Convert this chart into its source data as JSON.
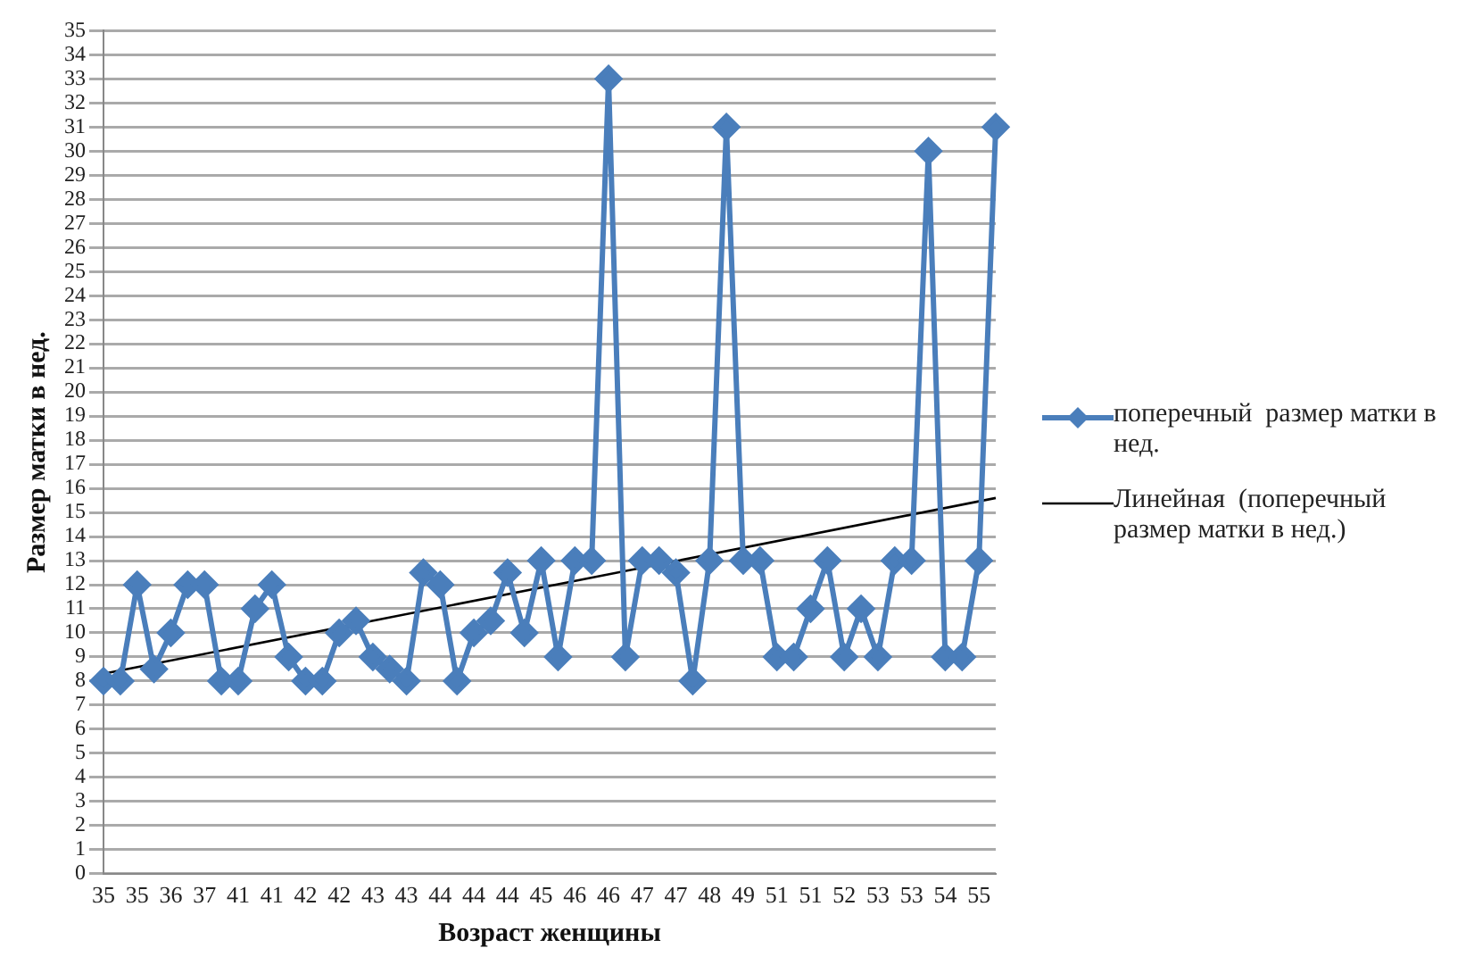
{
  "chart_data": {
    "type": "line",
    "xlabel": "Возраст женщины",
    "ylabel": "Размер матки в нед.",
    "categories": [
      "35",
      null,
      "35",
      null,
      "36",
      null,
      "37",
      null,
      "41",
      null,
      "41",
      null,
      "42",
      null,
      "42",
      null,
      "43",
      null,
      "43",
      null,
      "44",
      null,
      "44",
      null,
      "44",
      null,
      "45",
      null,
      "46",
      null,
      "46",
      null,
      "47",
      null,
      "47",
      null,
      "48",
      null,
      "49",
      null,
      "51",
      null,
      "51",
      null,
      "52",
      null,
      "53",
      null,
      "53",
      null,
      "54",
      null,
      "55",
      null
    ],
    "series": [
      {
        "name": "поперечный  размер матки в нед.",
        "color": "#4a7ebb",
        "marker": "diamond",
        "values": [
          8,
          8,
          12,
          8.5,
          10,
          12,
          12,
          8,
          8,
          11,
          12,
          9,
          8,
          8,
          10,
          10.5,
          9,
          8.5,
          8,
          12.5,
          12,
          8,
          10,
          10.5,
          12.5,
          10,
          13,
          9,
          13,
          13,
          33,
          9,
          13,
          13,
          12.5,
          8,
          13,
          31,
          13,
          13,
          9,
          9,
          11,
          13,
          9,
          11,
          9,
          13,
          13,
          30,
          9,
          9,
          13,
          31
        ]
      },
      {
        "name": "Линейная  (поперечный размер матки в нед.)",
        "color": "#000000",
        "marker": "none",
        "values": [
          8.3,
          null,
          null,
          null,
          null,
          null,
          null,
          null,
          null,
          null,
          null,
          null,
          null,
          null,
          null,
          null,
          null,
          null,
          null,
          null,
          null,
          null,
          null,
          null,
          null,
          null,
          null,
          null,
          null,
          null,
          null,
          null,
          null,
          null,
          null,
          null,
          null,
          null,
          null,
          null,
          null,
          null,
          null,
          null,
          null,
          null,
          null,
          null,
          null,
          null,
          null,
          null,
          null,
          15.6
        ]
      }
    ],
    "ylim": [
      0,
      35
    ],
    "yticks": [
      0,
      1,
      2,
      3,
      4,
      5,
      6,
      7,
      8,
      9,
      10,
      11,
      12,
      13,
      14,
      15,
      16,
      17,
      18,
      19,
      20,
      21,
      22,
      23,
      24,
      25,
      26,
      27,
      28,
      29,
      30,
      31,
      32,
      33,
      34,
      35
    ],
    "grid": "y",
    "legend": "right"
  }
}
